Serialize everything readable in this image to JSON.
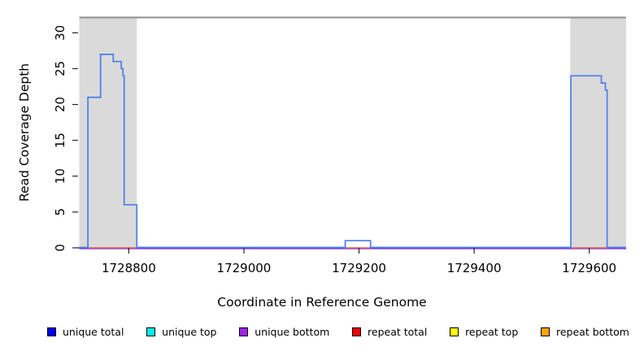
{
  "chart_data": {
    "type": "line",
    "subtype": "step-coverage",
    "xlabel": "Coordinate in Reference Genome",
    "ylabel": "Read Coverage Depth",
    "xlim": [
      1728714,
      1729664
    ],
    "ylim": [
      0,
      32
    ],
    "grid": false,
    "legend_position": "bottom",
    "x_ticks": {
      "values": [
        1728800,
        1729000,
        1729200,
        1729400,
        1729600
      ],
      "labels": [
        "1728800",
        "1729000",
        "1729200",
        "1729400",
        "1729600"
      ]
    },
    "y_ticks": {
      "values": [
        0,
        5,
        10,
        15,
        20,
        25,
        30
      ],
      "labels": [
        "0",
        "5",
        "10",
        "15",
        "20",
        "25",
        "30"
      ]
    },
    "repeat_region_fill": "#DADADA",
    "top_border_color": "#8E8E8E",
    "axis_color": "#262626",
    "repeat_regions": [
      [
        1728714,
        1728814
      ],
      [
        1729567,
        1729664
      ]
    ],
    "series": [
      {
        "name": "unique total",
        "legend_color": "#0000EE",
        "line_color": "#4A7EEC",
        "style": "step",
        "segments": [
          {
            "from": 1728714,
            "to": 1728729,
            "depth": 0
          },
          {
            "from": 1728729,
            "to": 1728751,
            "depth": 21
          },
          {
            "from": 1728751,
            "to": 1728773,
            "depth": 27
          },
          {
            "from": 1728773,
            "to": 1728787,
            "depth": 26
          },
          {
            "from": 1728787,
            "to": 1728790,
            "depth": 25
          },
          {
            "from": 1728790,
            "to": 1728792,
            "depth": 24
          },
          {
            "from": 1728792,
            "to": 1728814,
            "depth": 6
          },
          {
            "from": 1728814,
            "to": 1729176,
            "depth": 0
          },
          {
            "from": 1729176,
            "to": 1729220,
            "depth": 1
          },
          {
            "from": 1729220,
            "to": 1729568,
            "depth": 0
          },
          {
            "from": 1729568,
            "to": 1729621,
            "depth": 24
          },
          {
            "from": 1729621,
            "to": 1729628,
            "depth": 23
          },
          {
            "from": 1729628,
            "to": 1729631,
            "depth": 22
          },
          {
            "from": 1729631,
            "to": 1729664,
            "depth": 0
          }
        ]
      },
      {
        "name": "unique top",
        "legend_color": "#00EEEE",
        "line_color": "#00EEEE",
        "style": "hidden",
        "depth": 0
      },
      {
        "name": "unique bottom",
        "legend_color": "#A020F0",
        "line_color": "#9452EA",
        "style": "flat-zero",
        "from": 1728714,
        "to": 1729664,
        "depth": 0
      },
      {
        "name": "repeat total",
        "legend_color": "#EE0000",
        "line_color": "#F05A5A",
        "style": "zero-intervals",
        "intervals": [
          [
            1728729,
            1728814
          ],
          [
            1729176,
            1729220
          ],
          [
            1729568,
            1729631
          ]
        ],
        "depth": 0
      },
      {
        "name": "repeat top",
        "legend_color": "#FFFF00",
        "line_color": "#FFFF00",
        "style": "hidden",
        "depth": 0
      },
      {
        "name": "repeat bottom",
        "legend_color": "#FFA500",
        "line_color": "#FFA500",
        "style": "hidden",
        "depth": 0
      }
    ],
    "legend": [
      {
        "label": "unique total",
        "color": "#0000EE"
      },
      {
        "label": "unique top",
        "color": "#00EEEE"
      },
      {
        "label": "unique bottom",
        "color": "#A020F0"
      },
      {
        "label": "repeat total",
        "color": "#EE0000"
      },
      {
        "label": "repeat top",
        "color": "#FFFF00"
      },
      {
        "label": "repeat bottom",
        "color": "#FFA500"
      }
    ]
  }
}
